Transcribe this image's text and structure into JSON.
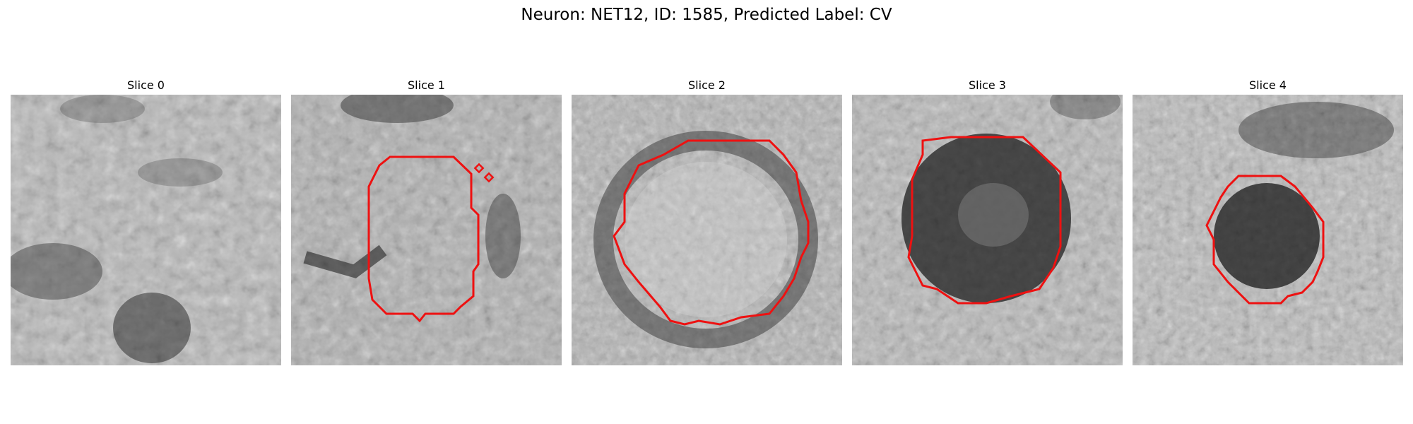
{
  "figure": {
    "suptitle": "Neuron: NET12, ID: 1585, Predicted Label: CV"
  },
  "colors": {
    "contour": "#ee1111",
    "background": "#ffffff"
  },
  "slices": [
    {
      "title": "Slice 0"
    },
    {
      "title": "Slice 1"
    },
    {
      "title": "Slice 2"
    },
    {
      "title": "Slice 3"
    },
    {
      "title": "Slice 4"
    }
  ]
}
